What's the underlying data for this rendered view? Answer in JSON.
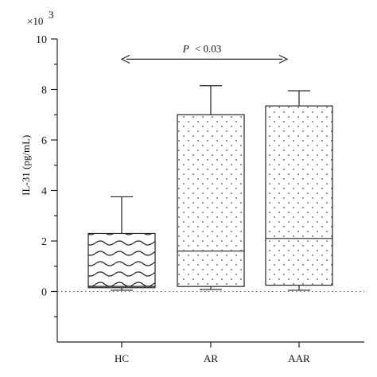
{
  "chart_data": {
    "type": "box",
    "ylabel": "IL-31 (pg/mL)",
    "y_multiplier": "×10",
    "y_multiplier_exponent": "3",
    "ylim": [
      -2,
      10
    ],
    "yticks": [
      "10",
      "8",
      "6",
      "4",
      "2",
      "0"
    ],
    "ytick_values": [
      10,
      8,
      6,
      4,
      2,
      0
    ],
    "categories": [
      "HC",
      "AR",
      "AAR"
    ],
    "groups": [
      {
        "label": "HC",
        "pattern": "wavy",
        "whisker_low": 0.05,
        "q1": 0.15,
        "median": 0.2,
        "q3": 2.3,
        "whisker_high": 3.75
      },
      {
        "label": "AR",
        "pattern": "dots",
        "whisker_low": 0.08,
        "q1": 0.2,
        "median": 1.6,
        "q3": 7.0,
        "whisker_high": 8.15
      },
      {
        "label": "AAR",
        "pattern": "dots",
        "whisker_low": 0.05,
        "q1": 0.25,
        "median": 2.1,
        "q3": 7.35,
        "whisker_high": 7.95
      }
    ],
    "annotation": {
      "p_label": "P",
      "comparison": "< 0.03",
      "from_category": "HC",
      "to_category": "AAR",
      "y": 9.2
    },
    "zero_reference_line": true,
    "grid": false,
    "legend": "none"
  }
}
